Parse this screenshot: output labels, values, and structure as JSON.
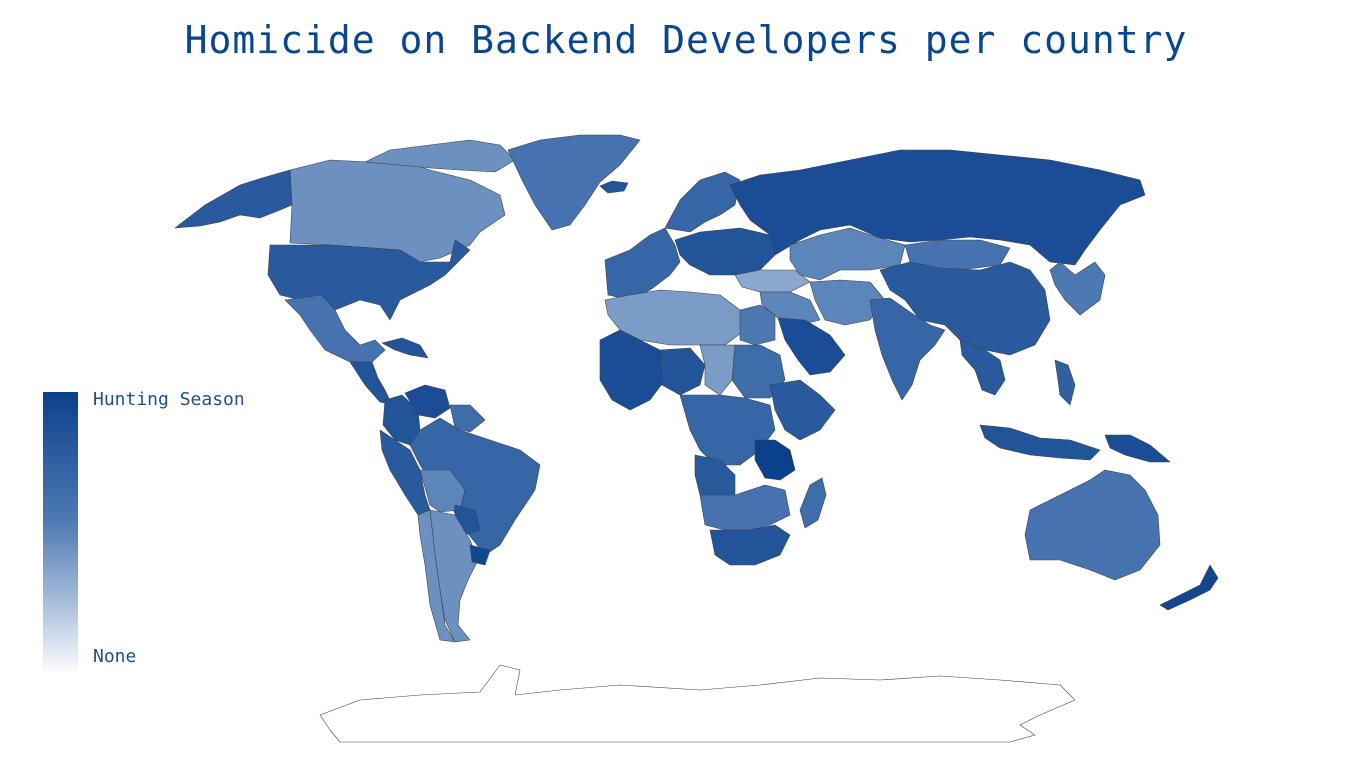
{
  "title": "Homicide on Backend Developers per country",
  "legend": {
    "high_label": "Hunting Season",
    "low_label": "None",
    "scale_colors": [
      "#0b418c",
      "#4d79b3",
      "#a9bfdb",
      "#ffffff"
    ]
  },
  "regions": [
    {
      "name": "Alaska",
      "level": 0.8
    },
    {
      "name": "Canada",
      "level": 0.45
    },
    {
      "name": "Canadian Arctic Archipelago",
      "level": 0.45
    },
    {
      "name": "Greenland",
      "level": 0.6
    },
    {
      "name": "Iceland",
      "level": 0.85
    },
    {
      "name": "United States",
      "level": 0.8
    },
    {
      "name": "Mexico",
      "level": 0.6
    },
    {
      "name": "Central America",
      "level": 0.85
    },
    {
      "name": "Caribbean",
      "level": 0.85
    },
    {
      "name": "Colombia",
      "level": 0.85
    },
    {
      "name": "Venezuela",
      "level": 0.9
    },
    {
      "name": "Guianas",
      "level": 0.65
    },
    {
      "name": "Ecuador / Peru",
      "level": 0.8
    },
    {
      "name": "Brazil",
      "level": 0.7
    },
    {
      "name": "Bolivia",
      "level": 0.5
    },
    {
      "name": "Paraguay",
      "level": 0.85
    },
    {
      "name": "Argentina",
      "level": 0.45
    },
    {
      "name": "Chile",
      "level": 0.45
    },
    {
      "name": "Uruguay",
      "level": 0.95
    },
    {
      "name": "Western Europe",
      "level": 0.7
    },
    {
      "name": "Scandinavia",
      "level": 0.7
    },
    {
      "name": "Eastern Europe",
      "level": 0.85
    },
    {
      "name": "Turkey",
      "level": 0.35
    },
    {
      "name": "Russia",
      "level": 0.9
    },
    {
      "name": "Kazakhstan",
      "level": 0.5
    },
    {
      "name": "Mongolia",
      "level": 0.6
    },
    {
      "name": "China",
      "level": 0.8
    },
    {
      "name": "Korea / Japan",
      "level": 0.55
    },
    {
      "name": "Middle East",
      "level": 0.5
    },
    {
      "name": "Saudi Arabia",
      "level": 0.9
    },
    {
      "name": "Iran / Afghanistan",
      "level": 0.5
    },
    {
      "name": "India",
      "level": 0.7
    },
    {
      "name": "Southeast Asia",
      "level": 0.8
    },
    {
      "name": "Indonesia",
      "level": 0.85
    },
    {
      "name": "Philippines",
      "level": 0.75
    },
    {
      "name": "Papua New Guinea",
      "level": 0.9
    },
    {
      "name": "Australia",
      "level": 0.6
    },
    {
      "name": "New Zealand",
      "level": 0.95
    },
    {
      "name": "North Africa",
      "level": 0.4
    },
    {
      "name": "Egypt",
      "level": 0.55
    },
    {
      "name": "West Africa",
      "level": 0.9
    },
    {
      "name": "Nigeria",
      "level": 0.85
    },
    {
      "name": "Sudan",
      "level": 0.65
    },
    {
      "name": "Chad / Niger",
      "level": 0.4
    },
    {
      "name": "Ethiopia / Horn",
      "level": 0.8
    },
    {
      "name": "Central Africa",
      "level": 0.7
    },
    {
      "name": "Tanzania",
      "level": 1.0
    },
    {
      "name": "Angola",
      "level": 0.8
    },
    {
      "name": "Southern Africa",
      "level": 0.6
    },
    {
      "name": "South Africa",
      "level": 0.85
    },
    {
      "name": "Madagascar",
      "level": 0.65
    },
    {
      "name": "Antarctica",
      "level": 0.0
    }
  ]
}
